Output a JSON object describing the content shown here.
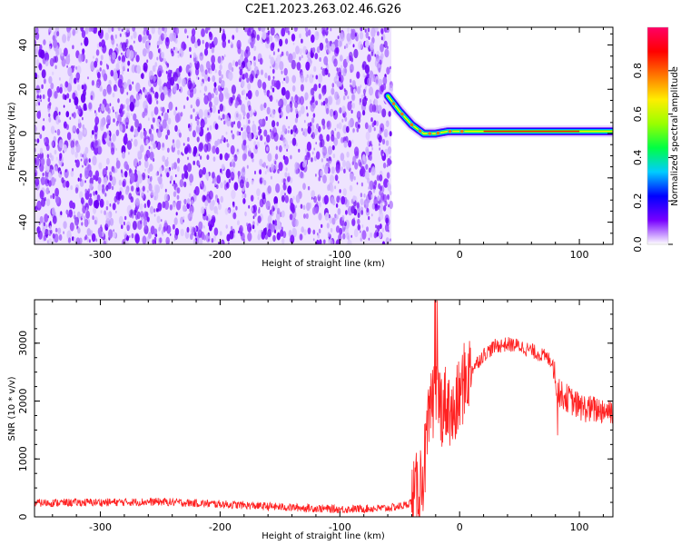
{
  "title": "C2E1.2023.263.02.46.G26",
  "chart_data": [
    {
      "type": "heatmap",
      "xlabel": "Height of straight line (km)",
      "ylabel": "Frequency (Hz)",
      "xlim": [
        -355,
        128
      ],
      "ylim": [
        -50,
        48
      ],
      "xticks": [
        -300,
        -200,
        -100,
        0,
        100
      ],
      "yticks": [
        -40,
        -20,
        0,
        20,
        40
      ],
      "noise_region_x": [
        -355,
        -57
      ],
      "signal_track": {
        "x": [
          -60,
          -50,
          -40,
          -30,
          -20,
          -10,
          0,
          20,
          40,
          60,
          80,
          100,
          128
        ],
        "y": [
          17,
          10,
          4,
          0,
          0,
          1,
          1,
          1,
          1,
          1,
          1,
          1,
          1
        ]
      },
      "colorbar": {
        "label": "Normalized spectral amplitude",
        "range": [
          0.0,
          1.0
        ],
        "ticks": [
          0.0,
          0.2,
          0.4,
          0.6,
          0.8
        ],
        "colors": [
          "#ffffff",
          "#7700ff",
          "#0000ff",
          "#00ccff",
          "#00ff44",
          "#99ff00",
          "#ffee00",
          "#ff7700",
          "#ff0000",
          "#ff0066"
        ]
      }
    },
    {
      "type": "line",
      "xlabel": "Height of straight line (km)",
      "ylabel": "SNR (10 * v/v)",
      "xlim": [
        -355,
        128
      ],
      "ylim": [
        0,
        3750
      ],
      "xticks": [
        -300,
        -200,
        -100,
        0,
        100
      ],
      "yticks": [
        0,
        1000,
        2000,
        3000
      ],
      "color": "#ff2222",
      "series": [
        {
          "x": [
            -355,
            -300,
            -250,
            -200,
            -150,
            -100,
            -60,
            -45,
            -38,
            -30,
            -25,
            -20,
            -15,
            -10,
            -5,
            0,
            5,
            10,
            20,
            30,
            40,
            50,
            60,
            70,
            78,
            82,
            90,
            100,
            110,
            120,
            128
          ],
          "y": [
            240,
            250,
            260,
            220,
            170,
            130,
            150,
            200,
            300,
            800,
            1700,
            2200,
            1900,
            2000,
            1700,
            2100,
            2400,
            2550,
            2800,
            2950,
            2980,
            2950,
            2870,
            2780,
            2680,
            2150,
            2050,
            1900,
            1850,
            1850,
            1840
          ]
        }
      ]
    }
  ]
}
